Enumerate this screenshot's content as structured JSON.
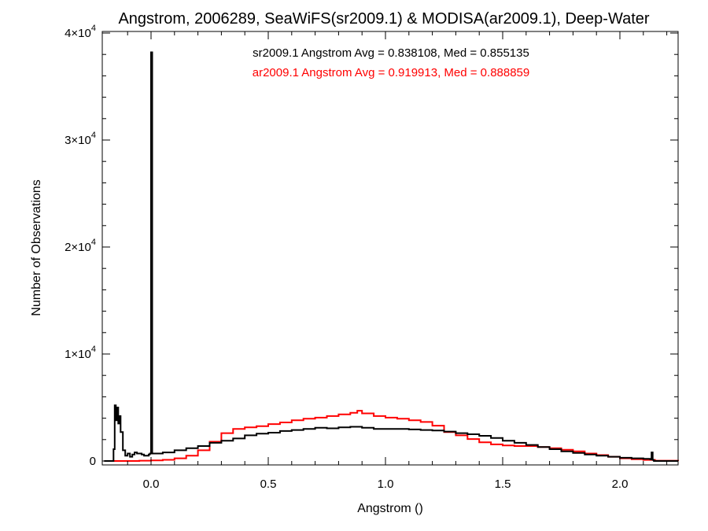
{
  "chart_data": {
    "type": "line",
    "title": "Angstrom, 2006289, SeaWiFS(sr2009.1) & MODISA(ar2009.1), Deep-Water",
    "xlabel": "Angstrom ()",
    "ylabel": "Number of Observations",
    "xlim": [
      -0.2,
      2.27
    ],
    "ylim": [
      0,
      40000
    ],
    "x_ticks": [
      {
        "value": 0.0,
        "label": "0.0"
      },
      {
        "value": 0.5,
        "label": "0.5"
      },
      {
        "value": 1.0,
        "label": "1.0"
      },
      {
        "value": 1.5,
        "label": "1.5"
      },
      {
        "value": 2.0,
        "label": "2.0"
      }
    ],
    "y_ticks": [
      {
        "value": 0,
        "mantissa": "0",
        "exponent": ""
      },
      {
        "value": 10000,
        "mantissa": "1×10",
        "exponent": "4"
      },
      {
        "value": 20000,
        "mantissa": "2×10",
        "exponent": "4"
      },
      {
        "value": 30000,
        "mantissa": "3×10",
        "exponent": "4"
      },
      {
        "value": 40000,
        "mantissa": "4×10",
        "exponent": "4"
      }
    ],
    "grid": false,
    "annotations": [
      {
        "text": "sr2009.1 Angstrom Avg = 0.838108, Med = 0.855135",
        "color": "#000000"
      },
      {
        "text": "ar2009.1 Angstrom Avg = 0.919913, Med = 0.888859",
        "color": "#ff0000"
      }
    ],
    "series": [
      {
        "color": "#000000",
        "style": "step",
        "x": [
          -0.2,
          -0.16,
          -0.155,
          -0.15,
          -0.145,
          -0.14,
          -0.135,
          -0.13,
          -0.12,
          -0.11,
          -0.1,
          -0.09,
          -0.08,
          -0.07,
          -0.06,
          -0.05,
          -0.04,
          -0.03,
          -0.02,
          -0.01,
          -0.005,
          0.0,
          0.005,
          0.05,
          0.1,
          0.15,
          0.2,
          0.25,
          0.3,
          0.35,
          0.4,
          0.45,
          0.5,
          0.55,
          0.6,
          0.65,
          0.7,
          0.75,
          0.8,
          0.85,
          0.9,
          0.95,
          1.0,
          1.05,
          1.1,
          1.15,
          1.2,
          1.25,
          1.3,
          1.35,
          1.4,
          1.45,
          1.5,
          1.55,
          1.6,
          1.65,
          1.7,
          1.75,
          1.8,
          1.85,
          1.9,
          1.95,
          2.0,
          2.05,
          2.1,
          2.13,
          2.135,
          2.14,
          2.145,
          2.15,
          2.27
        ],
        "values": [
          0,
          1100,
          5200,
          3800,
          5000,
          3500,
          4200,
          2700,
          1000,
          500,
          700,
          400,
          600,
          800,
          700,
          700,
          600,
          500,
          500,
          600,
          700,
          38200,
          700,
          800,
          1000,
          1200,
          1400,
          1700,
          1900,
          2100,
          2400,
          2550,
          2650,
          2800,
          2900,
          3000,
          3100,
          3050,
          3150,
          3200,
          3100,
          3000,
          3000,
          3000,
          2950,
          2900,
          2850,
          2750,
          2600,
          2500,
          2350,
          2150,
          1900,
          1700,
          1500,
          1300,
          1100,
          900,
          750,
          600,
          500,
          400,
          300,
          250,
          200,
          150,
          800,
          100,
          0,
          0,
          0
        ]
      },
      {
        "color": "#ff0000",
        "style": "step",
        "x": [
          -0.2,
          -0.1,
          -0.05,
          0.0,
          0.05,
          0.1,
          0.15,
          0.2,
          0.25,
          0.3,
          0.35,
          0.4,
          0.45,
          0.5,
          0.55,
          0.6,
          0.65,
          0.7,
          0.75,
          0.8,
          0.85,
          0.88,
          0.9,
          0.95,
          1.0,
          1.05,
          1.1,
          1.15,
          1.2,
          1.25,
          1.3,
          1.35,
          1.4,
          1.45,
          1.5,
          1.55,
          1.6,
          1.65,
          1.7,
          1.75,
          1.8,
          1.85,
          1.9,
          1.95,
          2.0,
          2.05,
          2.1,
          2.15,
          2.27
        ],
        "values": [
          0,
          0,
          30,
          60,
          110,
          250,
          500,
          1000,
          1800,
          2600,
          3000,
          3150,
          3250,
          3450,
          3600,
          3800,
          3950,
          4050,
          4200,
          4350,
          4500,
          4700,
          4450,
          4200,
          4050,
          3950,
          3800,
          3650,
          3300,
          2700,
          2400,
          2050,
          1750,
          1550,
          1450,
          1400,
          1400,
          1300,
          1200,
          1050,
          900,
          700,
          550,
          400,
          250,
          170,
          100,
          30,
          0
        ]
      }
    ]
  }
}
